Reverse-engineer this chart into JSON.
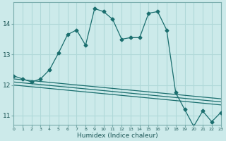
{
  "title": "",
  "xlabel": "Humidex (Indice chaleur)",
  "ylabel": "",
  "background_color": "#cceaea",
  "grid_color": "#b0d8d8",
  "line_color": "#1a6e6e",
  "x_range": [
    0,
    23
  ],
  "y_range": [
    10.7,
    14.7
  ],
  "y_ticks": [
    11,
    12,
    13,
    14
  ],
  "x_ticks": [
    0,
    1,
    2,
    3,
    4,
    5,
    6,
    7,
    8,
    9,
    10,
    11,
    12,
    13,
    14,
    15,
    16,
    17,
    18,
    19,
    20,
    21,
    22,
    23
  ],
  "main_line": {
    "x": [
      0,
      1,
      2,
      3,
      4,
      5,
      6,
      7,
      8,
      9,
      10,
      11,
      12,
      13,
      14,
      15,
      16,
      17,
      18,
      19,
      20,
      21,
      22,
      23
    ],
    "y": [
      12.3,
      12.2,
      12.1,
      12.2,
      12.5,
      13.05,
      13.65,
      13.8,
      13.3,
      14.5,
      14.4,
      14.15,
      13.5,
      13.55,
      13.55,
      14.35,
      14.4,
      13.8,
      11.75,
      11.2,
      10.65,
      11.15,
      10.8,
      11.1
    ]
  },
  "line2": {
    "x": [
      0,
      23
    ],
    "y": [
      12.2,
      11.55
    ]
  },
  "line3": {
    "x": [
      0,
      23
    ],
    "y": [
      12.1,
      11.45
    ]
  },
  "line4": {
    "x": [
      0,
      23
    ],
    "y": [
      12.0,
      11.35
    ]
  }
}
